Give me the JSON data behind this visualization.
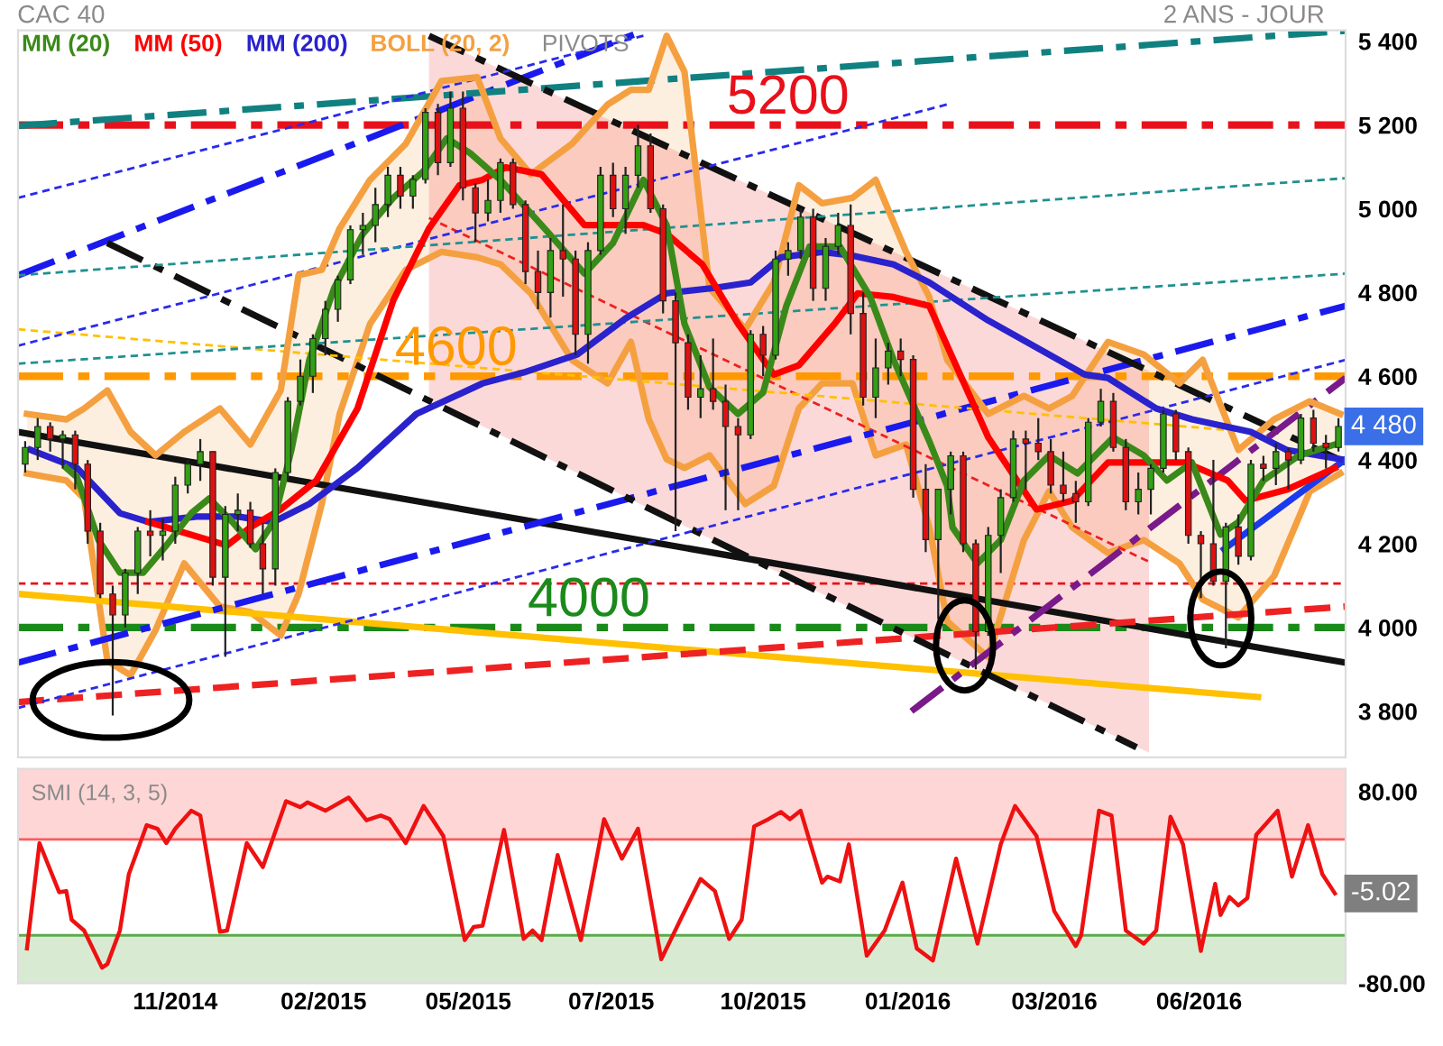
{
  "chart_data": [
    {
      "type": "candlestick",
      "title": "CAC 40",
      "subtitle": "2 ANS - JOUR",
      "legend": "top left",
      "grid": false,
      "tick_labels": "y",
      "colors": [
        "#33a014",
        "#33a014",
        "#dd1111",
        "#33a014",
        "#dd1111",
        "#dd1111",
        "#dd1111",
        "#dd1111",
        "#33a014",
        "#33a014",
        "#dd1111",
        "#33a014",
        "#33a014",
        "#33a014",
        "#33a014",
        "#dd1111",
        "#33a014",
        "#33a014",
        "#dd1111",
        "#dd1111",
        "#33a014",
        "#33a014",
        "#33a014",
        "#33a014",
        "#33a014",
        "#33a014",
        "#33a014",
        "#33a014",
        "#33a014",
        "#33a014",
        "#dd1111",
        "#33a014",
        "#33a014",
        "#dd1111",
        "#33a014",
        "#dd1111",
        "#dd1111",
        "#33a014",
        "#33a014",
        "#dd1111",
        "#dd1111",
        "#dd1111",
        "#33a014",
        "#dd1111",
        "#dd1111",
        "#33a014",
        "#33a014",
        "#dd1111",
        "#33a014",
        "#33a014",
        "#dd1111",
        "#dd1111",
        "#dd1111",
        "#dd1111",
        "#33a014",
        "#dd1111",
        "#dd1111",
        "#dd1111",
        "#33a014",
        "#dd1111",
        "#33a014",
        "#33a014",
        "#33a014",
        "#dd1111",
        "#33a014",
        "#33a014",
        "#dd1111",
        "#dd1111",
        "#33a014",
        "#33a014",
        "#dd1111",
        "#dd1111",
        "#dd1111",
        "#33a014",
        "#33a014",
        "#dd1111",
        "#dd1111",
        "#33a014",
        "#33a014",
        "#33a014",
        "#dd1111",
        "#dd1111",
        "#dd1111",
        "#dd1111",
        "#dd1111",
        "#33a014",
        "#33a014",
        "#dd1111",
        "#dd1111",
        "#33a014",
        "#33a014",
        "#33a014",
        "#dd1111",
        "#dd1111",
        "#dd1111",
        "#dd1111",
        "#33a014",
        "#dd1111",
        "#33a014",
        "#dd1111",
        "#33a014",
        "#dd1111",
        "#33a014",
        "#dd1111",
        "#dd1111",
        "#33a014"
      ],
      "x": [
        "2014-08-29",
        "2014-09-05",
        "2014-09-12",
        "2014-09-19",
        "2014-09-26",
        "2014-10-03",
        "2014-10-10",
        "2014-10-17",
        "2014-10-24",
        "2014-10-31",
        "2014-11-07",
        "2014-11-14",
        "2014-11-21",
        "2014-11-28",
        "2014-12-05",
        "2014-12-12",
        "2014-12-19",
        "2014-12-26",
        "2015-01-02",
        "2015-01-09",
        "2015-01-16",
        "2015-01-23",
        "2015-01-30",
        "2015-02-06",
        "2015-02-13",
        "2015-02-20",
        "2015-02-27",
        "2015-03-06",
        "2015-03-13",
        "2015-03-20",
        "2015-03-27",
        "2015-04-03",
        "2015-04-10",
        "2015-04-17",
        "2015-04-24",
        "2015-05-01",
        "2015-05-08",
        "2015-05-15",
        "2015-05-22",
        "2015-05-29",
        "2015-06-05",
        "2015-06-12",
        "2015-06-19",
        "2015-06-26",
        "2015-07-03",
        "2015-07-10",
        "2015-07-17",
        "2015-07-24",
        "2015-07-31",
        "2015-08-07",
        "2015-08-14",
        "2015-08-21",
        "2015-08-28",
        "2015-09-04",
        "2015-09-11",
        "2015-09-18",
        "2015-09-25",
        "2015-10-02",
        "2015-10-09",
        "2015-10-16",
        "2015-10-23",
        "2015-10-30",
        "2015-11-06",
        "2015-11-13",
        "2015-11-20",
        "2015-11-27",
        "2015-12-04",
        "2015-12-11",
        "2015-12-18",
        "2015-12-25",
        "2016-01-01",
        "2016-01-08",
        "2016-01-15",
        "2016-01-22",
        "2016-01-29",
        "2016-02-05",
        "2016-02-12",
        "2016-02-19",
        "2016-02-26",
        "2016-03-04",
        "2016-03-11",
        "2016-03-18",
        "2016-03-25",
        "2016-04-01",
        "2016-04-08",
        "2016-04-15",
        "2016-04-22",
        "2016-04-29",
        "2016-05-06",
        "2016-05-13",
        "2016-05-20",
        "2016-05-27",
        "2016-06-03",
        "2016-06-10",
        "2016-06-17",
        "2016-06-24",
        "2016-07-01",
        "2016-07-08",
        "2016-07-15",
        "2016-07-22",
        "2016-07-29",
        "2016-08-05",
        "2016-08-12",
        "2016-08-19",
        "2016-08-26",
        "2016-09-02"
      ],
      "ohlc": [
        [
          4390,
          4445,
          4370,
          4430
        ],
        [
          4430,
          4500,
          4400,
          4480
        ],
        [
          4480,
          4490,
          4420,
          4450
        ],
        [
          4450,
          4470,
          4380,
          4460
        ],
        [
          4460,
          4470,
          4330,
          4390
        ],
        [
          4390,
          4400,
          4200,
          4230
        ],
        [
          4230,
          4250,
          4070,
          4080
        ],
        [
          4080,
          4100,
          3790,
          4030
        ],
        [
          4030,
          4140,
          4000,
          4130
        ],
        [
          4130,
          4240,
          4080,
          4230
        ],
        [
          4230,
          4280,
          4170,
          4220
        ],
        [
          4220,
          4260,
          4160,
          4230
        ],
        [
          4230,
          4360,
          4200,
          4340
        ],
        [
          4340,
          4400,
          4320,
          4390
        ],
        [
          4390,
          4450,
          4350,
          4420
        ],
        [
          4420,
          4420,
          4100,
          4120
        ],
        [
          4120,
          4290,
          3930,
          4270
        ],
        [
          4270,
          4320,
          4230,
          4280
        ],
        [
          4280,
          4300,
          4190,
          4200
        ],
        [
          4200,
          4250,
          4080,
          4140
        ],
        [
          4140,
          4380,
          4100,
          4370
        ],
        [
          4370,
          4550,
          4350,
          4540
        ],
        [
          4540,
          4640,
          4530,
          4600
        ],
        [
          4600,
          4700,
          4560,
          4690
        ],
        [
          4690,
          4780,
          4650,
          4760
        ],
        [
          4760,
          4840,
          4730,
          4830
        ],
        [
          4830,
          4960,
          4820,
          4950
        ],
        [
          4950,
          4990,
          4890,
          4960
        ],
        [
          4960,
          5050,
          4920,
          5010
        ],
        [
          5010,
          5100,
          4980,
          5080
        ],
        [
          5080,
          5100,
          5000,
          5030
        ],
        [
          5030,
          5080,
          5000,
          5070
        ],
        [
          5070,
          5240,
          5060,
          5230
        ],
        [
          5230,
          5250,
          5080,
          5110
        ],
        [
          5110,
          5280,
          5100,
          5240
        ],
        [
          5240,
          5280,
          5020,
          5050
        ],
        [
          5050,
          5060,
          4920,
          4990
        ],
        [
          4990,
          5070,
          4970,
          5020
        ],
        [
          5020,
          5120,
          4990,
          5110
        ],
        [
          5110,
          5120,
          5000,
          5010
        ],
        [
          5010,
          5020,
          4820,
          4850
        ],
        [
          4850,
          4900,
          4760,
          4800
        ],
        [
          4800,
          4930,
          4740,
          4900
        ],
        [
          4900,
          5010,
          4790,
          4880
        ],
        [
          4880,
          4900,
          4650,
          4700
        ],
        [
          4700,
          4920,
          4630,
          4900
        ],
        [
          4900,
          5100,
          4890,
          5080
        ],
        [
          5080,
          5110,
          4980,
          5000
        ],
        [
          5000,
          5100,
          4940,
          5080
        ],
        [
          5080,
          5200,
          5050,
          5150
        ],
        [
          5150,
          5180,
          4990,
          5000
        ],
        [
          5000,
          5010,
          4750,
          4780
        ],
        [
          4780,
          4800,
          4230,
          4680
        ],
        [
          4680,
          4700,
          4520,
          4550
        ],
        [
          4550,
          4650,
          4500,
          4570
        ],
        [
          4570,
          4690,
          4520,
          4540
        ],
        [
          4540,
          4580,
          4280,
          4480
        ],
        [
          4480,
          4500,
          4280,
          4460
        ],
        [
          4460,
          4710,
          4450,
          4700
        ],
        [
          4700,
          4720,
          4600,
          4650
        ],
        [
          4650,
          4900,
          4640,
          4880
        ],
        [
          4880,
          4920,
          4840,
          4900
        ],
        [
          4900,
          5000,
          4880,
          4980
        ],
        [
          4980,
          5000,
          4780,
          4810
        ],
        [
          4810,
          4930,
          4780,
          4910
        ],
        [
          4910,
          4990,
          4890,
          4960
        ],
        [
          4960,
          5010,
          4700,
          4750
        ],
        [
          4750,
          4800,
          4530,
          4550
        ],
        [
          4550,
          4690,
          4500,
          4620
        ],
        [
          4620,
          4680,
          4580,
          4660
        ],
        [
          4660,
          4690,
          4600,
          4640
        ],
        [
          4640,
          4650,
          4310,
          4330
        ],
        [
          4330,
          4390,
          4180,
          4210
        ],
        [
          4210,
          4330,
          4020,
          4330
        ],
        [
          4330,
          4420,
          4270,
          4410
        ],
        [
          4410,
          4420,
          4180,
          4200
        ],
        [
          4200,
          4210,
          3900,
          3990
        ],
        [
          3990,
          4240,
          3980,
          4220
        ],
        [
          4220,
          4330,
          4130,
          4310
        ],
        [
          4310,
          4470,
          4300,
          4450
        ],
        [
          4450,
          4470,
          4330,
          4440
        ],
        [
          4440,
          4500,
          4400,
          4420
        ],
        [
          4420,
          4450,
          4320,
          4340
        ],
        [
          4340,
          4420,
          4300,
          4320
        ],
        [
          4320,
          4350,
          4250,
          4300
        ],
        [
          4300,
          4500,
          4290,
          4490
        ],
        [
          4490,
          4570,
          4480,
          4540
        ],
        [
          4540,
          4560,
          4420,
          4430
        ],
        [
          4430,
          4450,
          4280,
          4300
        ],
        [
          4300,
          4370,
          4270,
          4330
        ],
        [
          4330,
          4390,
          4270,
          4380
        ],
        [
          4380,
          4520,
          4370,
          4510
        ],
        [
          4510,
          4520,
          4400,
          4420
        ],
        [
          4420,
          4430,
          4200,
          4220
        ],
        [
          4220,
          4230,
          4070,
          4200
        ],
        [
          4200,
          4400,
          4100,
          4110
        ],
        [
          4110,
          4250,
          3950,
          4240
        ],
        [
          4240,
          4270,
          4150,
          4170
        ],
        [
          4170,
          4400,
          4160,
          4390
        ],
        [
          4390,
          4410,
          4350,
          4380
        ],
        [
          4380,
          4440,
          4340,
          4420
        ],
        [
          4420,
          4430,
          4330,
          4400
        ],
        [
          4400,
          4510,
          4390,
          4500
        ],
        [
          4500,
          4520,
          4420,
          4440
        ],
        [
          4440,
          4460,
          4380,
          4430
        ],
        [
          4430,
          4500,
          4420,
          4480
        ]
      ],
      "series": [
        {
          "type": "line",
          "color": "#f5a040",
          "x": [
            "2014-08-30",
            "2014-09-21",
            "2014-10-01",
            "2014-10-14",
            "2014-10-27",
            "2014-11-10",
            "2014-11-26",
            "2014-12-16",
            "2015-01-02",
            "2015-01-19",
            "2015-01-29",
            "2015-02-11",
            "2015-02-21",
            "2015-03-10",
            "2015-03-30",
            "2015-04-19",
            "2015-05-09",
            "2015-05-22",
            "2015-06-08",
            "2015-07-01",
            "2015-07-21",
            "2015-08-03",
            "2015-08-13",
            "2015-08-23",
            "2015-09-02",
            "2015-09-16",
            "2015-10-06",
            "2015-10-22",
            "2015-11-05",
            "2015-11-18",
            "2015-12-05",
            "2015-12-18",
            "2016-01-04",
            "2016-01-17",
            "2016-01-27",
            "2016-02-19",
            "2016-03-10",
            "2016-03-24",
            "2016-04-06",
            "2016-04-26",
            "2016-05-16",
            "2016-06-05",
            "2016-06-18",
            "2016-07-08",
            "2016-07-28",
            "2016-08-17",
            "2016-09-03"
          ],
          "values": [
            4368,
            4351,
            4308,
            3920,
            3886,
            3994,
            4153,
            4050,
            4037,
            3981,
            4080,
            4295,
            4510,
            4725,
            4854,
            4897,
            4884,
            4867,
            4798,
            4639,
            4583,
            4682,
            4497,
            4402,
            4381,
            4411,
            4295,
            4338,
            4523,
            4583,
            4583,
            4411,
            4437,
            4239,
            4015,
            3929,
            4209,
            4325,
            4239,
            4178,
            4209,
            4153,
            4067,
            4024,
            4123,
            4325,
            4368
          ]
        },
        {
          "name": "BOLL (20, 2)",
          "type": "line",
          "color": "#f5a040",
          "x": [
            "2014-08-30",
            "2014-09-21",
            "2014-10-01",
            "2014-10-14",
            "2014-10-27",
            "2014-11-10",
            "2014-11-26",
            "2014-12-16",
            "2015-01-02",
            "2015-01-19",
            "2015-01-29",
            "2015-02-11",
            "2015-02-21",
            "2015-03-10",
            "2015-03-30",
            "2015-04-19",
            "2015-05-09",
            "2015-05-22",
            "2015-06-08",
            "2015-07-01",
            "2015-07-21",
            "2015-08-03",
            "2015-08-13",
            "2015-08-23",
            "2015-09-02",
            "2015-09-16",
            "2015-10-06",
            "2015-10-22",
            "2015-11-05",
            "2015-11-18",
            "2015-12-05",
            "2015-12-18",
            "2016-01-04",
            "2016-01-17",
            "2016-01-27",
            "2016-02-19",
            "2016-03-10",
            "2016-03-24",
            "2016-04-06",
            "2016-04-26",
            "2016-05-16",
            "2016-06-05",
            "2016-06-18",
            "2016-07-08",
            "2016-07-28",
            "2016-08-17",
            "2016-09-03"
          ],
          "values": [
            4510,
            4497,
            4523,
            4566,
            4467,
            4411,
            4467,
            4523,
            4437,
            4566,
            4841,
            4854,
            4953,
            5069,
            5155,
            5305,
            5314,
            5168,
            5082,
            5155,
            5249,
            5284,
            5284,
            5413,
            5327,
            4811,
            4712,
            4824,
            5056,
            5013,
            5026,
            5069,
            4897,
            4789,
            4639,
            4510,
            4553,
            4523,
            4553,
            4682,
            4652,
            4583,
            4639,
            4424,
            4497,
            4540,
            4510
          ],
          "upper": [
            4510,
            4497,
            4523,
            4566,
            4467,
            4411,
            4467,
            4523,
            4437,
            4566,
            4841,
            4854,
            4953,
            5069,
            5155,
            5305,
            5314,
            5168,
            5082,
            5155,
            5249,
            5284,
            5284,
            5413,
            5327,
            4811,
            4712,
            4824,
            5056,
            5013,
            5026,
            5069,
            4897,
            4789,
            4639,
            4510,
            4553,
            4523,
            4553,
            4682,
            4652,
            4583,
            4639,
            4424,
            4497,
            4540,
            4510
          ],
          "lower": [
            4368,
            4351,
            4308,
            3920,
            3886,
            3994,
            4153,
            4050,
            4037,
            3981,
            4080,
            4295,
            4510,
            4725,
            4854,
            4897,
            4884,
            4867,
            4798,
            4639,
            4583,
            4682,
            4497,
            4402,
            4381,
            4411,
            4295,
            4338,
            4523,
            4583,
            4583,
            4411,
            4437,
            4239,
            4015,
            3929,
            4209,
            4325,
            4239,
            4178,
            4209,
            4153,
            4067,
            4024,
            4123,
            4325,
            4368
          ]
        },
        {
          "type": "line",
          "color": "#ee2020",
          "line_style": "dotted",
          "x": [
            "2015-04-12",
            "2015-11-08",
            "2016-05-19"
          ],
          "values": [
            4978,
            4548,
            4157
          ],
          "lower": [
            4544,
            4101,
            3701
          ],
          "upper": [
            5413,
            4996,
            4613
          ]
        },
        {
          "type": "line",
          "color": "#111111",
          "line_style": "solid",
          "x": [
            "2014-08-25",
            "2016-09-06"
          ],
          "values": [
            4467,
            3916
          ]
        },
        {
          "type": "line",
          "color": "#ffc000",
          "line_style": "solid",
          "x": [
            "2014-08-25",
            "2016-07-19"
          ],
          "values": [
            4080,
            3834
          ]
        },
        {
          "type": "line",
          "color": "#ee2222",
          "line_style": "dashed",
          "x": [
            "2014-08-25",
            "2016-09-06"
          ],
          "values": [
            3822,
            4050
          ]
        },
        {
          "type": "line",
          "color": "#1a1aee",
          "line_style": "dashdot",
          "x": [
            "2014-08-25",
            "2016-09-06"
          ],
          "values": [
            3916,
            4768
          ]
        },
        {
          "type": "line",
          "color": "#1a1aee",
          "line_style": "dashdot",
          "x": [
            "2014-08-25",
            "2015-08-07"
          ],
          "values": [
            4841,
            5420
          ]
        },
        {
          "type": "line",
          "color": "#118080",
          "line_style": "dashdot",
          "x": [
            "2014-08-25",
            "2016-09-06"
          ],
          "values": [
            5198,
            5425
          ]
        },
        {
          "type": "line",
          "color": "#111111",
          "line_style": "dashdot",
          "x": [
            "2015-04-12",
            "2016-09-06"
          ],
          "values": [
            5413,
            4394
          ]
        },
        {
          "type": "line",
          "color": "#111111",
          "line_style": "dashdot",
          "x": [
            "2014-10-14",
            "2016-05-12"
          ],
          "values": [
            4918,
            3714
          ]
        },
        {
          "type": "line",
          "color": "#7a1a8a",
          "line_style": "dashdot",
          "x": [
            "2016-01-07",
            "2016-09-06"
          ],
          "values": [
            3800,
            4596
          ]
        },
        {
          "type": "line",
          "color": "#1a3aee",
          "line_style": "solid",
          "x": [
            "2016-06-30",
            "2016-09-06"
          ],
          "values": [
            4187,
            4402
          ]
        },
        {
          "type": "line",
          "color": "#ffc000",
          "line_style": "dotted",
          "x": [
            "2014-08-25",
            "2016-07-15"
          ],
          "values": [
            4712,
            4467
          ]
        },
        {
          "type": "line",
          "color": "#2a2aee",
          "line_style": "dotted",
          "x": [
            "2014-08-25",
            "2015-08-10"
          ],
          "values": [
            5026,
            5413
          ]
        },
        {
          "type": "line",
          "color": "#2a2aee",
          "line_style": "dotted",
          "x": [
            "2014-08-25",
            "2016-01-27"
          ],
          "values": [
            4673,
            5249
          ]
        },
        {
          "type": "line",
          "color": "#2a2aee",
          "line_style": "dotted",
          "x": [
            "2014-08-25",
            "2016-09-06"
          ],
          "values": [
            3808,
            4639
          ]
        },
        {
          "type": "line",
          "color": "#209090",
          "line_style": "dotted",
          "x": [
            "2014-08-25",
            "2016-09-06"
          ],
          "values": [
            4841,
            5073
          ]
        },
        {
          "type": "line",
          "color": "#209090",
          "line_style": "dotted",
          "x": [
            "2014-08-25",
            "2016-09-06"
          ],
          "values": [
            4630,
            4845
          ]
        },
        {
          "name": "MM (200)",
          "type": "line",
          "color": "#2a22cc",
          "line_style": "solid",
          "x": [
            "2014-09-01",
            "2014-09-27",
            "2014-10-21",
            "2014-11-06",
            "2014-12-03",
            "2014-12-26",
            "2015-01-15",
            "2015-02-04",
            "2015-03-03",
            "2015-04-05",
            "2015-05-12",
            "2015-06-04",
            "2015-07-04",
            "2015-07-31",
            "2015-08-23",
            "2015-09-19",
            "2015-10-09",
            "2015-10-26",
            "2015-11-18",
            "2015-12-05",
            "2015-12-28",
            "2016-01-17",
            "2016-02-19",
            "2016-03-24",
            "2016-04-13",
            "2016-04-26",
            "2016-05-23",
            "2016-06-12",
            "2016-07-15",
            "2016-08-04",
            "2016-09-03"
          ],
          "values": [
            4424,
            4381,
            4273,
            4252,
            4265,
            4265,
            4252,
            4295,
            4381,
            4510,
            4583,
            4609,
            4652,
            4738,
            4798,
            4811,
            4824,
            4884,
            4897,
            4888,
            4867,
            4824,
            4733,
            4652,
            4604,
            4596,
            4523,
            4497,
            4467,
            4424,
            4402
          ]
        },
        {
          "name": "MM (50)",
          "type": "line",
          "color": "#ff0000",
          "line_style": "solid",
          "x": [
            "2014-11-06",
            "2014-11-23",
            "2014-12-20",
            "2015-01-02",
            "2015-01-19",
            "2015-02-08",
            "2015-03-03",
            "2015-03-23",
            "2015-04-12",
            "2015-04-29",
            "2015-05-12",
            "2015-05-25",
            "2015-06-14",
            "2015-07-08",
            "2015-07-24",
            "2015-08-10",
            "2015-08-23",
            "2015-09-12",
            "2015-10-02",
            "2015-10-22",
            "2015-11-05",
            "2015-11-25",
            "2015-12-08",
            "2015-12-28",
            "2016-01-17",
            "2016-02-19",
            "2016-03-17",
            "2016-04-06",
            "2016-04-26",
            "2016-05-23",
            "2016-06-08",
            "2016-07-02",
            "2016-07-12",
            "2016-08-04",
            "2016-08-31"
          ],
          "values": [
            4252,
            4230,
            4196,
            4239,
            4282,
            4351,
            4523,
            4781,
            4953,
            5056,
            5069,
            5099,
            5082,
            4961,
            4961,
            4961,
            4940,
            4867,
            4725,
            4604,
            4626,
            4725,
            4798,
            4789,
            4768,
            4454,
            4282,
            4303,
            4394,
            4394,
            4394,
            4351,
            4303,
            4329,
            4381
          ]
        },
        {
          "name": "MM (20)",
          "type": "line",
          "color": "#3a8a1a",
          "line_style": "solid",
          "x": [
            "2014-09-21",
            "2014-09-27",
            "2014-10-09",
            "2014-10-21",
            "2014-11-03",
            "2014-11-16",
            "2014-11-30",
            "2014-12-10",
            "2014-12-23",
            "2015-01-05",
            "2015-01-15",
            "2015-01-25",
            "2015-02-04",
            "2015-02-18",
            "2015-03-06",
            "2015-03-23",
            "2015-04-09",
            "2015-04-22",
            "2015-05-05",
            "2015-05-22",
            "2015-06-14",
            "2015-07-08",
            "2015-07-24",
            "2015-08-10",
            "2015-08-23",
            "2015-09-02",
            "2015-09-16",
            "2015-10-02",
            "2015-10-16",
            "2015-10-29",
            "2015-11-11",
            "2015-11-28",
            "2015-12-15",
            "2015-12-28",
            "2016-01-17",
            "2016-01-27",
            "2016-01-30",
            "2016-02-13",
            "2016-02-26",
            "2016-03-10",
            "2016-03-24",
            "2016-04-09",
            "2016-04-29",
            "2016-05-16",
            "2016-05-29",
            "2016-06-12",
            "2016-06-28",
            "2016-07-08",
            "2016-07-22",
            "2016-08-11",
            "2016-08-31"
          ],
          "values": [
            4381,
            4359,
            4209,
            4131,
            4131,
            4196,
            4273,
            4308,
            4252,
            4187,
            4252,
            4424,
            4639,
            4811,
            4940,
            5026,
            5090,
            5168,
            5133,
            5069,
            4961,
            4845,
            4918,
            5069,
            4961,
            4725,
            4574,
            4510,
            4561,
            4768,
            4910,
            4910,
            4789,
            4639,
            4445,
            4338,
            4239,
            4153,
            4209,
            4351,
            4411,
            4368,
            4454,
            4411,
            4351,
            4394,
            4222,
            4252,
            4351,
            4411,
            4437
          ]
        }
      ],
      "ref_lines": [
        {
          "axis": "y",
          "value": 5200,
          "label": "5200",
          "color": "#e8101a",
          "line_style": "dashdot"
        },
        {
          "axis": "y",
          "value": 4600,
          "label": "4600",
          "color": "#ff9900",
          "line_style": "dashdot"
        },
        {
          "axis": "y",
          "value": 4000,
          "label": "4000",
          "color": "#1a8a1a",
          "line_style": "dashdot"
        },
        {
          "axis": "y",
          "value": 4105,
          "color": "#e8101a",
          "line_style": "dotted"
        }
      ],
      "annotations": [
        "PIVOTS",
        {
          "text": "4 480",
          "x": "2016-09-02",
          "y": 4480
        }
      ],
      "xlim": [
        "2014-08-25",
        "2016-09-06"
      ],
      "ylim": [
        3690,
        5426
      ],
      "yticks": [
        {
          "value": 3800,
          "label": "3 800"
        },
        {
          "value": 4000,
          "label": "4 000"
        },
        {
          "value": 4200,
          "label": "4 200"
        },
        {
          "value": 4400,
          "label": "4 400"
        },
        {
          "value": 4600,
          "label": "4 600"
        },
        {
          "value": 4800,
          "label": "4 800"
        },
        {
          "value": 5000,
          "label": "5 000"
        },
        {
          "value": 5200,
          "label": "5 200"
        },
        {
          "value": 5400,
          "label": "5 400"
        }
      ]
    },
    {
      "type": "line",
      "title": "SMI (14, 3, 5)",
      "grid": false,
      "series": [
        {
          "color": "#ee1111",
          "line_style": "solid",
          "x": [
            "2014-08-30",
            "2014-09-06",
            "2014-09-17",
            "2014-09-21",
            "2014-09-24",
            "2014-10-01",
            "2014-10-11",
            "2014-10-14",
            "2014-10-21",
            "2014-10-26",
            "2014-11-05",
            "2014-11-11",
            "2014-11-16",
            "2014-11-21",
            "2014-11-30",
            "2014-12-05",
            "2014-12-16",
            "2014-12-20",
            "2014-12-31",
            "2015-01-09",
            "2015-01-22",
            "2015-01-30",
            "2015-02-03",
            "2015-02-13",
            "2015-02-26",
            "2015-03-08",
            "2015-03-16",
            "2015-03-21",
            "2015-03-30",
            "2015-04-09",
            "2015-04-20",
            "2015-05-02",
            "2015-05-07",
            "2015-05-12",
            "2015-05-24",
            "2015-06-04",
            "2015-06-09",
            "2015-06-14",
            "2015-06-23",
            "2015-07-06",
            "2015-07-19",
            "2015-07-29",
            "2015-08-07",
            "2015-08-20",
            "2015-09-01",
            "2015-09-11",
            "2015-09-19",
            "2015-09-27",
            "2015-10-04",
            "2015-10-11",
            "2015-10-19",
            "2015-10-26",
            "2015-10-31",
            "2015-11-06",
            "2015-11-18",
            "2015-11-21",
            "2015-11-28",
            "2015-12-03",
            "2015-12-13",
            "2015-12-23",
            "2016-01-02",
            "2016-01-10",
            "2016-01-19",
            "2016-02-01",
            "2016-02-13",
            "2016-02-26",
            "2016-03-05",
            "2016-03-17",
            "2016-03-27",
            "2016-04-08",
            "2016-04-11",
            "2016-04-21",
            "2016-04-28",
            "2016-05-06",
            "2016-05-16",
            "2016-05-23",
            "2016-05-31",
            "2016-06-07",
            "2016-06-17",
            "2016-06-25",
            "2016-06-28",
            "2016-07-03",
            "2016-07-08",
            "2016-07-13",
            "2016-07-18",
            "2016-07-30",
            "2016-08-07",
            "2016-08-16",
            "2016-08-24",
            "2016-08-31"
          ],
          "values": [
            -51,
            37,
            -4,
            -3,
            -27,
            -36,
            -67,
            -64,
            -36,
            11,
            52,
            49,
            37,
            49,
            64,
            60,
            -37,
            -36,
            37,
            17,
            72,
            67,
            71,
            64,
            75,
            56,
            60,
            57,
            37,
            68,
            43,
            -44,
            -33,
            -32,
            48,
            -43,
            -36,
            -44,
            27,
            -44,
            57,
            24,
            49,
            -60,
            -23,
            7,
            -3,
            -43,
            -27,
            51,
            57,
            63,
            57,
            64,
            4,
            9,
            5,
            36,
            -57,
            -36,
            4,
            -51,
            -61,
            24,
            -47,
            36,
            68,
            43,
            -20,
            -49,
            -40,
            64,
            60,
            -36,
            -47,
            -36,
            59,
            36,
            -53,
            3,
            -23,
            -8,
            -15,
            -9,
            44,
            64,
            9,
            52,
            11,
            -5.02
          ]
        }
      ],
      "bands": [
        {
          "axis": "y",
          "from": 40,
          "to": 99,
          "color": "#ffd6d6"
        },
        {
          "axis": "y",
          "from": -80,
          "to": -40,
          "color": "#d9ead3"
        }
      ],
      "ref_lines": [
        {
          "axis": "y",
          "value": 40,
          "color": "#ff5a5a",
          "line_style": "solid"
        },
        {
          "axis": "y",
          "value": -40,
          "color": "#5aaa4a",
          "line_style": "solid"
        }
      ],
      "annotations": [
        {
          "text": "-5.02",
          "x": "2016-08-31",
          "y": -5.02
        }
      ],
      "xlim": [
        "2014-08-25",
        "2016-09-06"
      ],
      "ylim": [
        -80,
        99
      ],
      "xticks": [
        {
          "value": "2014-11-21",
          "label": "11/2014"
        },
        {
          "value": "2015-02-12",
          "label": "02/2015"
        },
        {
          "value": "2015-05-04",
          "label": "05/2015"
        },
        {
          "value": "2015-07-23",
          "label": "07/2015"
        },
        {
          "value": "2015-10-16",
          "label": "10/2015"
        },
        {
          "value": "2016-01-05",
          "label": "01/2016"
        },
        {
          "value": "2016-03-27",
          "label": "03/2016"
        },
        {
          "value": "2016-06-16",
          "label": "06/2016"
        }
      ],
      "yticks": [
        {
          "value": 80,
          "label": "80.00"
        },
        {
          "value": -80,
          "label": "-80.00"
        }
      ]
    }
  ]
}
